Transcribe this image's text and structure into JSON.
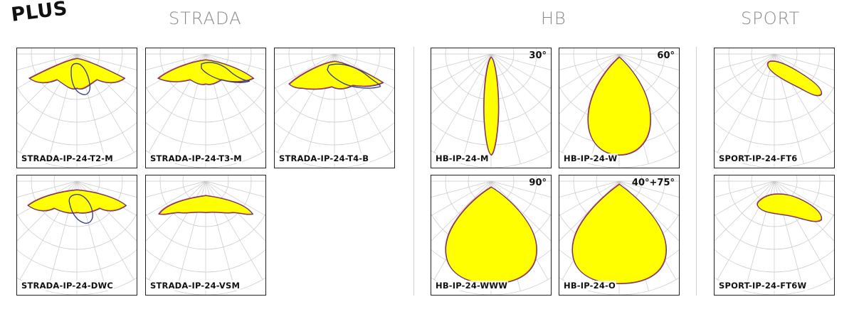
{
  "brand": "PLUS",
  "sections": {
    "strada": "STRADA",
    "hb": "HB",
    "sport": "SPORT"
  },
  "colors": {
    "fill": "#ffff00",
    "curve_a": "#e0303a",
    "curve_b": "#303a8a",
    "grid": "#c8c8c8"
  },
  "cards": [
    {
      "id": "t2m",
      "label": "STRADA-IP-24-T2-M",
      "angle": "",
      "shape": "wide_top",
      "overlay": "narrow_tilt"
    },
    {
      "id": "t3m",
      "label": "STRADA-IP-24-T3-M",
      "angle": "",
      "shape": "wide_top2",
      "overlay": "side_lobe"
    },
    {
      "id": "t4b",
      "label": "STRADA-IP-24-T4-B",
      "angle": "",
      "shape": "wide_top3",
      "overlay": "side_lobe2"
    },
    {
      "id": "dwc",
      "label": "STRADA-IP-24-DWC",
      "angle": "",
      "shape": "wide_mid",
      "overlay": "narrow_tilt2"
    },
    {
      "id": "vsm",
      "label": "STRADA-IP-24-VSM",
      "angle": "",
      "shape": "flat_wave",
      "overlay": ""
    },
    {
      "id": "hbm",
      "label": "HB-IP-24-M",
      "angle": "30°",
      "shape": "narrow_30",
      "overlay": ""
    },
    {
      "id": "hbw",
      "label": "HB-IP-24-W",
      "angle": "60°",
      "shape": "drop_60",
      "overlay": ""
    },
    {
      "id": "hbwww",
      "label": "HB-IP-24-WWW",
      "angle": "90°",
      "shape": "drop_90",
      "overlay": ""
    },
    {
      "id": "hbo",
      "label": "HB-IP-24-O",
      "angle": "40°+75°",
      "shape": "drop_o",
      "overlay": ""
    },
    {
      "id": "ft6",
      "label": "SPORT-IP-24-FT6",
      "angle": "",
      "shape": "sport_a",
      "overlay": ""
    },
    {
      "id": "ft6w",
      "label": "SPORT-IP-24-FT6W",
      "angle": "",
      "shape": "sport_b",
      "overlay": ""
    }
  ]
}
